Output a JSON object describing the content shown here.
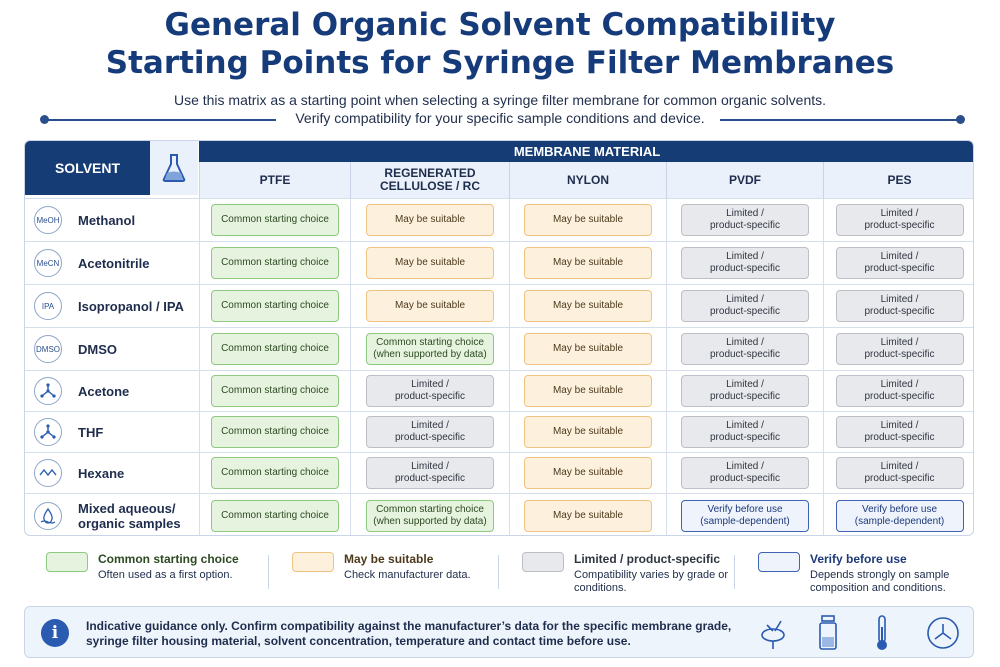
{
  "header": {
    "title_line1": "General Organic Solvent Compatibility",
    "title_line2": "Starting Points for Syringe Filter Membranes",
    "subtitle_line1": "Use this matrix as a starting point when selecting a syringe filter membrane for common organic solvents.",
    "subtitle_line2": "Verify compatibility for your specific sample conditions and device."
  },
  "matrix": {
    "solvent_header": "SOLVENT",
    "membrane_header": "MEMBRANE MATERIAL",
    "columns": [
      "PTFE",
      "REGENERATED\nCELLULOSE / RC",
      "NYLON",
      "PVDF",
      "PES"
    ],
    "rows": [
      {
        "icon_text": "MeOH",
        "name": "Methanol",
        "cells": [
          "Common starting choice",
          "May be suitable",
          "May be suitable",
          "Limited /\nproduct-specific",
          "Limited /\nproduct-specific"
        ],
        "status": [
          "common",
          "suitable",
          "suitable",
          "limited",
          "limited"
        ]
      },
      {
        "icon_text": "MeCN",
        "name": "Acetonitrile",
        "cells": [
          "Common starting choice",
          "May be suitable",
          "May be suitable",
          "Limited /\nproduct-specific",
          "Limited /\nproduct-specific"
        ],
        "status": [
          "common",
          "suitable",
          "suitable",
          "limited",
          "limited"
        ]
      },
      {
        "icon_text": "IPA",
        "name": "Isopropanol / IPA",
        "cells": [
          "Common starting choice",
          "May be suitable",
          "May be suitable",
          "Limited /\nproduct-specific",
          "Limited /\nproduct-specific"
        ],
        "status": [
          "common",
          "suitable",
          "suitable",
          "limited",
          "limited"
        ]
      },
      {
        "icon_text": "DMSO",
        "name": "DMSO",
        "cells": [
          "Common starting choice",
          "Common starting choice\n(when supported by data)",
          "May be suitable",
          "Limited /\nproduct-specific",
          "Limited /\nproduct-specific"
        ],
        "status": [
          "common",
          "common",
          "suitable",
          "limited",
          "limited"
        ]
      },
      {
        "icon_text": "",
        "name": "Acetone",
        "cells": [
          "Common starting choice",
          "Limited /\nproduct-specific",
          "May be suitable",
          "Limited /\nproduct-specific",
          "Limited /\nproduct-specific"
        ],
        "status": [
          "common",
          "limited",
          "suitable",
          "limited",
          "limited"
        ]
      },
      {
        "icon_text": "",
        "name": "THF",
        "cells": [
          "Common starting choice",
          "Limited /\nproduct-specific",
          "May be suitable",
          "Limited /\nproduct-specific",
          "Limited /\nproduct-specific"
        ],
        "status": [
          "common",
          "limited",
          "suitable",
          "limited",
          "limited"
        ]
      },
      {
        "icon_text": "",
        "name": "Hexane",
        "cells": [
          "Common starting choice",
          "Limited /\nproduct-specific",
          "May be suitable",
          "Limited /\nproduct-specific",
          "Limited /\nproduct-specific"
        ],
        "status": [
          "common",
          "limited",
          "suitable",
          "limited",
          "limited"
        ]
      },
      {
        "icon_text": "",
        "name": "Mixed aqueous/\norganic samples",
        "cells": [
          "Common starting choice",
          "Common starting choice\n(when supported by data)",
          "May be suitable",
          "Verify before use\n(sample-dependent)",
          "Verify before use\n(sample-dependent)"
        ],
        "status": [
          "common",
          "common",
          "suitable",
          "verify",
          "verify"
        ]
      }
    ],
    "row_icons": [
      "text-icon",
      "text-icon",
      "text-icon",
      "text-icon",
      "molecule-icon",
      "molecule-icon",
      "wave-icon",
      "water-drop-icon"
    ]
  },
  "legend": [
    {
      "key": "common",
      "title": "Common starting choice",
      "desc": "Often used as a first option."
    },
    {
      "key": "suitable",
      "title": "May be suitable",
      "desc": "Check manufacturer data."
    },
    {
      "key": "limited",
      "title": "Limited / product-specific",
      "desc": "Compatibility varies by grade or conditions."
    },
    {
      "key": "verify",
      "title": "Verify before use",
      "desc": "Depends strongly on sample composition and conditions."
    }
  ],
  "note": {
    "text": "Indicative guidance only. Confirm compatibility against the manufacturer’s data for the specific membrane grade, syringe filter housing material, solvent concentration, temperature and contact time before use.",
    "icons": [
      "syringe-filter-icon",
      "vial-icon",
      "thermometer-icon",
      "clock-icon"
    ]
  },
  "colors": {
    "navy": "#153c74",
    "title_blue": "#163b7a",
    "common_fill": "#e6f4df",
    "suitable_fill": "#fdf1de",
    "limited_fill": "#e8e9ec",
    "verify_border": "#3f63b5"
  }
}
